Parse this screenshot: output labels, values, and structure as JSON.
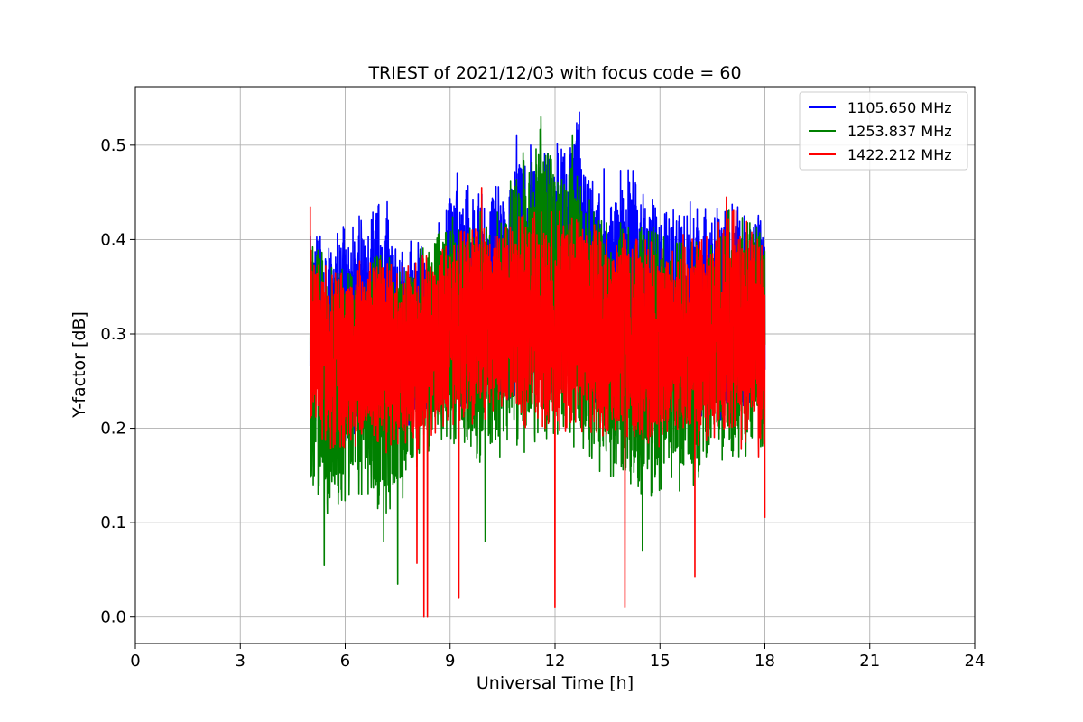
{
  "chart_data": {
    "type": "line",
    "title": "TRIEST of 2021/12/03 with focus code = 60",
    "xlabel": "Universal Time [h]",
    "ylabel": "Y-factor [dB]",
    "xlim": [
      0,
      24
    ],
    "ylim": [
      -0.028,
      0.562
    ],
    "xticks": [
      0,
      3,
      6,
      9,
      12,
      15,
      18,
      21,
      24
    ],
    "yticks": [
      0.0,
      0.1,
      0.2,
      0.3,
      0.4,
      0.5
    ],
    "xtick_labels": [
      "0",
      "3",
      "6",
      "9",
      "12",
      "15",
      "18",
      "21",
      "24"
    ],
    "ytick_labels": [
      "0.0",
      "0.1",
      "0.2",
      "0.3",
      "0.4",
      "0.5"
    ],
    "grid": true,
    "legend_position": "top-right",
    "x_range": [
      5.0,
      18.0
    ],
    "series": [
      {
        "name": "1105.650 MHz",
        "color": "#0000ff",
        "envelope_x": [
          5.0,
          5.5,
          6.0,
          6.5,
          7.0,
          7.5,
          8.0,
          8.5,
          9.0,
          9.5,
          10.0,
          10.5,
          11.0,
          11.5,
          12.0,
          12.5,
          13.0,
          13.5,
          14.0,
          14.5,
          15.0,
          15.5,
          16.0,
          16.5,
          17.0,
          17.5,
          18.0
        ],
        "envelope_upper": [
          0.43,
          0.4,
          0.42,
          0.43,
          0.44,
          0.4,
          0.4,
          0.39,
          0.47,
          0.46,
          0.45,
          0.46,
          0.51,
          0.5,
          0.5,
          0.54,
          0.49,
          0.43,
          0.49,
          0.46,
          0.43,
          0.44,
          0.44,
          0.43,
          0.44,
          0.43,
          0.43
        ],
        "envelope_lower": [
          0.18,
          0.19,
          0.18,
          0.2,
          0.19,
          0.19,
          0.2,
          0.21,
          0.22,
          0.21,
          0.23,
          0.23,
          0.23,
          0.24,
          0.22,
          0.23,
          0.22,
          0.21,
          0.21,
          0.22,
          0.2,
          0.2,
          0.2,
          0.21,
          0.2,
          0.2,
          0.19
        ],
        "spikes": [
          {
            "x": 12.7,
            "y": 0.535
          },
          {
            "x": 10.9,
            "y": 0.51
          },
          {
            "x": 11.3,
            "y": 0.5
          },
          {
            "x": 9.2,
            "y": 0.47
          },
          {
            "x": 13.4,
            "y": 0.475
          },
          {
            "x": 7.2,
            "y": 0.44
          },
          {
            "x": 14.3,
            "y": 0.46
          },
          {
            "x": 6.4,
            "y": 0.425
          }
        ]
      },
      {
        "name": "1253.837 MHz",
        "color": "#008000",
        "envelope_x": [
          5.0,
          5.5,
          6.0,
          6.5,
          7.0,
          7.5,
          8.0,
          8.5,
          9.0,
          9.5,
          10.0,
          10.5,
          11.0,
          11.5,
          12.0,
          12.5,
          13.0,
          13.5,
          14.0,
          14.5,
          15.0,
          15.5,
          16.0,
          16.5,
          17.0,
          17.5,
          18.0
        ],
        "envelope_upper": [
          0.4,
          0.38,
          0.37,
          0.38,
          0.39,
          0.38,
          0.39,
          0.4,
          0.43,
          0.43,
          0.43,
          0.44,
          0.49,
          0.52,
          0.5,
          0.48,
          0.45,
          0.42,
          0.42,
          0.42,
          0.41,
          0.41,
          0.4,
          0.41,
          0.44,
          0.42,
          0.41
        ],
        "envelope_lower": [
          0.1,
          0.11,
          0.12,
          0.13,
          0.11,
          0.11,
          0.15,
          0.18,
          0.18,
          0.17,
          0.15,
          0.16,
          0.15,
          0.19,
          0.18,
          0.18,
          0.17,
          0.14,
          0.12,
          0.12,
          0.13,
          0.13,
          0.14,
          0.15,
          0.16,
          0.17,
          0.15
        ],
        "spikes": [
          {
            "x": 11.6,
            "y": 0.53
          },
          {
            "x": 12.5,
            "y": 0.51
          },
          {
            "x": 5.4,
            "y": 0.055
          },
          {
            "x": 7.5,
            "y": 0.035
          },
          {
            "x": 7.1,
            "y": 0.08
          },
          {
            "x": 10.0,
            "y": 0.08
          },
          {
            "x": 14.5,
            "y": 0.07
          }
        ]
      },
      {
        "name": "1422.212 MHz",
        "color": "#ff0000",
        "envelope_x": [
          5.0,
          5.5,
          6.0,
          6.5,
          7.0,
          7.5,
          8.0,
          8.5,
          9.0,
          9.5,
          10.0,
          10.5,
          11.0,
          11.5,
          12.0,
          12.5,
          13.0,
          13.5,
          14.0,
          14.5,
          15.0,
          15.5,
          16.0,
          16.5,
          17.0,
          17.5,
          18.0
        ],
        "envelope_upper": [
          0.4,
          0.37,
          0.37,
          0.38,
          0.38,
          0.37,
          0.38,
          0.39,
          0.41,
          0.41,
          0.42,
          0.41,
          0.43,
          0.43,
          0.43,
          0.43,
          0.42,
          0.41,
          0.41,
          0.4,
          0.4,
          0.41,
          0.4,
          0.41,
          0.44,
          0.42,
          0.41
        ],
        "envelope_lower": [
          0.19,
          0.18,
          0.17,
          0.18,
          0.17,
          0.18,
          0.17,
          0.19,
          0.2,
          0.2,
          0.21,
          0.21,
          0.2,
          0.2,
          0.19,
          0.2,
          0.19,
          0.19,
          0.18,
          0.18,
          0.18,
          0.19,
          0.17,
          0.18,
          0.17,
          0.18,
          0.15
        ],
        "spikes": [
          {
            "x": 5.0,
            "y": 0.435
          },
          {
            "x": 16.9,
            "y": 0.445
          },
          {
            "x": 9.9,
            "y": 0.455
          },
          {
            "x": 8.25,
            "y": 0.0
          },
          {
            "x": 8.35,
            "y": 0.0
          },
          {
            "x": 8.05,
            "y": 0.057
          },
          {
            "x": 12.0,
            "y": 0.01
          },
          {
            "x": 14.0,
            "y": 0.01
          },
          {
            "x": 9.25,
            "y": 0.02
          },
          {
            "x": 16.0,
            "y": 0.043
          },
          {
            "x": 18.0,
            "y": 0.105
          }
        ]
      }
    ]
  }
}
